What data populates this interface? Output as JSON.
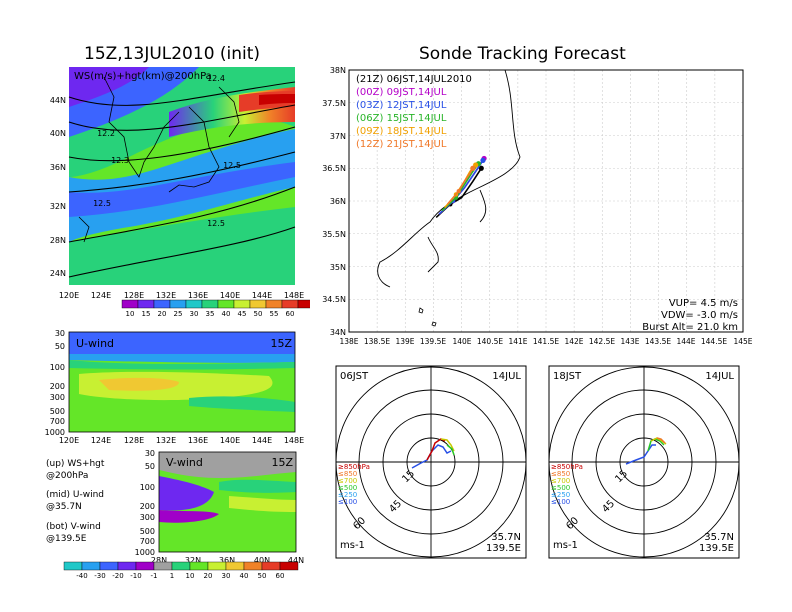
{
  "titles": {
    "left_title": "15Z,13JUL2010 (init)",
    "right_title": "Sonde Tracking Forecast"
  },
  "upper_map": {
    "field_label": "WS(m/s)+hgt(km)@200hPa",
    "lat_ticks": [
      "44N",
      "40N",
      "36N",
      "32N",
      "28N",
      "24N"
    ],
    "lon_ticks": [
      "120E",
      "124E",
      "128E",
      "132E",
      "136E",
      "140E",
      "144E",
      "148E"
    ],
    "contour_labels": [
      "12.2",
      "12.3",
      "12.5",
      "12.5",
      "12.5",
      "12.4"
    ],
    "colorbar_ticks": [
      "10",
      "15",
      "20",
      "25",
      "30",
      "35",
      "40",
      "45",
      "50",
      "55",
      "60"
    ],
    "colorbar_colors": [
      "#a000c8",
      "#6e28f0",
      "#3c64ff",
      "#28a0f0",
      "#20c8c8",
      "#28d27a",
      "#64e628",
      "#c8f032",
      "#f0c832",
      "#f08228",
      "#e63c28",
      "#c80000"
    ]
  },
  "u_wind": {
    "label": "U-wind",
    "time": "15Z",
    "p_ticks": [
      "30",
      "50",
      "100",
      "200",
      "300",
      "500",
      "700",
      "1000"
    ],
    "lon_ticks": [
      "120E",
      "124E",
      "128E",
      "132E",
      "136E",
      "140E",
      "144E",
      "148E"
    ]
  },
  "v_wind": {
    "label": "V-wind",
    "time": "15Z",
    "p_ticks": [
      "30",
      "50",
      "100",
      "200",
      "300",
      "500",
      "700",
      "1000"
    ],
    "lat_ticks": [
      "28N",
      "32N",
      "36N",
      "40N",
      "44N"
    ],
    "colorbar_ticks": [
      "-40",
      "-30",
      "-20",
      "-10",
      "-1",
      "1",
      "10",
      "20",
      "30",
      "40",
      "50",
      "60"
    ],
    "colorbar_colors": [
      "#20c8c8",
      "#28a0f0",
      "#3c64ff",
      "#6e28f0",
      "#a000c8",
      "#a0a0a0",
      "#28d27a",
      "#64e628",
      "#c8f032",
      "#f0c832",
      "#f08228",
      "#e63c28",
      "#c80000"
    ]
  },
  "panel_notes": [
    {
      "key": "(up)",
      "text": "WS+hgt\n@200hPa"
    },
    {
      "key": "(mid)",
      "text": "U-wind\n@35.7N"
    },
    {
      "key": "(bot)",
      "text": "V-wind\n@139.5E"
    }
  ],
  "track_map": {
    "lat_ticks": [
      "38N",
      "37.5N",
      "37N",
      "36.5N",
      "36N",
      "35.5N",
      "35N",
      "34.5N",
      "34N"
    ],
    "lon_ticks": [
      "138E",
      "138.5E",
      "139E",
      "139.5E",
      "140E",
      "140.5E",
      "141E",
      "141.5E",
      "142E",
      "142.5E",
      "143E",
      "143.5E",
      "144E",
      "144.5E",
      "145E"
    ],
    "launches": [
      {
        "tag": "(21Z)",
        "label": "06JST,14JUL2010",
        "color": "#000000"
      },
      {
        "tag": "(00Z)",
        "label": "09JST,14JUL",
        "color": "#b400c8"
      },
      {
        "tag": "(03Z)",
        "label": "12JST,14JUL",
        "color": "#2850e6"
      },
      {
        "tag": "(06Z)",
        "label": "15JST,14JUL",
        "color": "#28b428"
      },
      {
        "tag": "(09Z)",
        "label": "18JST,14JUL",
        "color": "#f0a000"
      },
      {
        "tag": "(12Z)",
        "label": "21JST,14JUL",
        "color": "#f07828"
      }
    ],
    "vup": "VUP= 4.5 m/s",
    "vdw": "VDW= -3.0 m/s",
    "burst": "Burst Alt= 21.0 km"
  },
  "hodo_left": {
    "time": "06JST",
    "date": "14JUL",
    "ring_labels": [
      "15",
      "45",
      "60"
    ],
    "levels": [
      "≥850hPa",
      "≤850",
      "≤700",
      "≤500",
      "≤250",
      "≤100"
    ],
    "level_colors": [
      "#c80000",
      "#f07828",
      "#c8c800",
      "#28c828",
      "#28a0f0",
      "#2850e6"
    ],
    "unit": "ms-1",
    "lat": "35.7N",
    "lon": "139.5E"
  },
  "hodo_right": {
    "time": "18JST",
    "date": "14JUL",
    "ring_labels": [
      "15",
      "45",
      "60"
    ],
    "levels": [
      "≥850hPa",
      "≤850",
      "≤700",
      "≤500",
      "≤250",
      "≤100"
    ],
    "level_colors": [
      "#c80000",
      "#f07828",
      "#c8c800",
      "#28c828",
      "#28a0f0",
      "#2850e6"
    ],
    "unit": "ms-1",
    "lat": "35.7N",
    "lon": "139.5E"
  },
  "chart_data": [
    {
      "type": "line",
      "title": "Sonde Tracking Forecast",
      "xlabel": "",
      "ylabel": "",
      "xlim": [
        138,
        145
      ],
      "ylim": [
        34,
        38
      ],
      "series": [
        {
          "name": "(21Z) 06JST,14JUL2010",
          "x": [
            139.55,
            139.8,
            140.0,
            140.2,
            140.35
          ],
          "y": [
            35.75,
            35.95,
            36.05,
            36.3,
            36.5
          ]
        },
        {
          "name": "(00Z) 09JST,14JUL",
          "x": [
            139.6,
            139.85,
            140.05,
            140.25,
            140.4
          ],
          "y": [
            35.8,
            36.0,
            36.2,
            36.45,
            36.65
          ]
        },
        {
          "name": "(03Z) 12JST,14JUL",
          "x": [
            139.6,
            139.85,
            140.05,
            140.25,
            140.38
          ],
          "y": [
            35.8,
            36.0,
            36.2,
            36.45,
            36.62
          ]
        },
        {
          "name": "(06Z) 15JST,14JUL",
          "x": [
            139.65,
            139.9,
            140.05,
            140.2,
            140.3
          ],
          "y": [
            35.85,
            36.05,
            36.25,
            36.45,
            36.57
          ]
        },
        {
          "name": "(09Z) 18JST,14JUL",
          "x": [
            139.7,
            139.9,
            140.05,
            140.15,
            140.25
          ],
          "y": [
            35.9,
            36.1,
            36.3,
            36.45,
            36.55
          ]
        },
        {
          "name": "(12Z) 21JST,14JUL",
          "x": [
            139.75,
            139.95,
            140.05,
            140.15,
            140.2
          ],
          "y": [
            35.95,
            36.15,
            36.3,
            36.42,
            36.5
          ]
        }
      ],
      "grid": true,
      "legend": "top-left"
    }
  ]
}
